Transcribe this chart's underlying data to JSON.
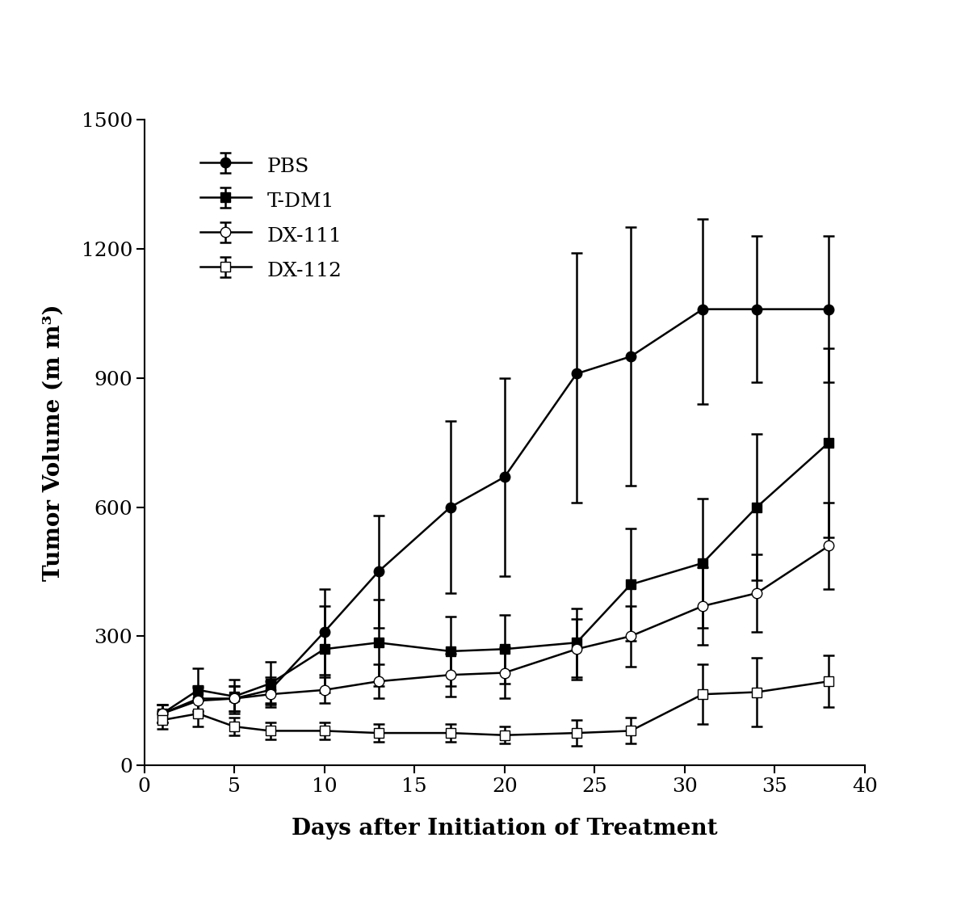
{
  "title": "",
  "xlabel": "Days after Initiation of Treatment",
  "ylabel": "Tumor Volume (m m³)",
  "xlim": [
    0,
    40
  ],
  "ylim": [
    0,
    1500
  ],
  "yticks": [
    0,
    300,
    600,
    900,
    1200,
    1500
  ],
  "xticks": [
    0,
    5,
    10,
    15,
    20,
    25,
    30,
    35,
    40
  ],
  "series": [
    {
      "label": "PBS",
      "marker": "o",
      "marker_fill": "black",
      "x": [
        1,
        3,
        5,
        7,
        10,
        13,
        17,
        20,
        24,
        27,
        31,
        34,
        38
      ],
      "y": [
        120,
        155,
        155,
        175,
        310,
        450,
        600,
        670,
        910,
        950,
        1060,
        1060,
        1060
      ],
      "yerr_low": [
        20,
        30,
        30,
        30,
        100,
        130,
        200,
        230,
        300,
        300,
        220,
        170,
        170
      ],
      "yerr_high": [
        20,
        30,
        30,
        30,
        100,
        130,
        200,
        230,
        280,
        300,
        210,
        170,
        170
      ]
    },
    {
      "label": "T-DM1",
      "marker": "s",
      "marker_fill": "black",
      "x": [
        1,
        3,
        5,
        7,
        10,
        13,
        17,
        20,
        24,
        27,
        31,
        34,
        38
      ],
      "y": [
        120,
        175,
        160,
        190,
        270,
        285,
        265,
        270,
        285,
        420,
        470,
        600,
        750
      ],
      "yerr_low": [
        20,
        50,
        40,
        50,
        100,
        100,
        80,
        80,
        80,
        130,
        150,
        170,
        220
      ],
      "yerr_high": [
        20,
        50,
        40,
        50,
        100,
        100,
        80,
        80,
        80,
        130,
        150,
        170,
        220
      ]
    },
    {
      "label": "DX-111",
      "marker": "o",
      "marker_fill": "white",
      "x": [
        1,
        3,
        5,
        7,
        10,
        13,
        17,
        20,
        24,
        27,
        31,
        34,
        38
      ],
      "y": [
        120,
        150,
        155,
        165,
        175,
        195,
        210,
        215,
        270,
        300,
        370,
        400,
        510
      ],
      "yerr_low": [
        20,
        30,
        30,
        30,
        30,
        40,
        50,
        60,
        70,
        70,
        90,
        90,
        100
      ],
      "yerr_high": [
        20,
        30,
        30,
        30,
        30,
        40,
        50,
        60,
        70,
        70,
        90,
        90,
        100
      ]
    },
    {
      "label": "DX-112",
      "marker": "s",
      "marker_fill": "white",
      "x": [
        1,
        3,
        5,
        7,
        10,
        13,
        17,
        20,
        24,
        27,
        31,
        34,
        38
      ],
      "y": [
        105,
        120,
        90,
        80,
        80,
        75,
        75,
        70,
        75,
        80,
        165,
        170,
        195
      ],
      "yerr_low": [
        20,
        30,
        20,
        20,
        20,
        20,
        20,
        20,
        30,
        30,
        70,
        80,
        60
      ],
      "yerr_high": [
        20,
        30,
        20,
        20,
        20,
        20,
        20,
        20,
        30,
        30,
        70,
        80,
        60
      ]
    }
  ],
  "legend_loc": "upper left",
  "background_color": "#ffffff",
  "line_color": "black",
  "line_width": 1.8,
  "marker_size": 9,
  "font_family": "serif",
  "axis_label_fontsize": 20,
  "tick_fontsize": 18,
  "legend_fontsize": 18
}
